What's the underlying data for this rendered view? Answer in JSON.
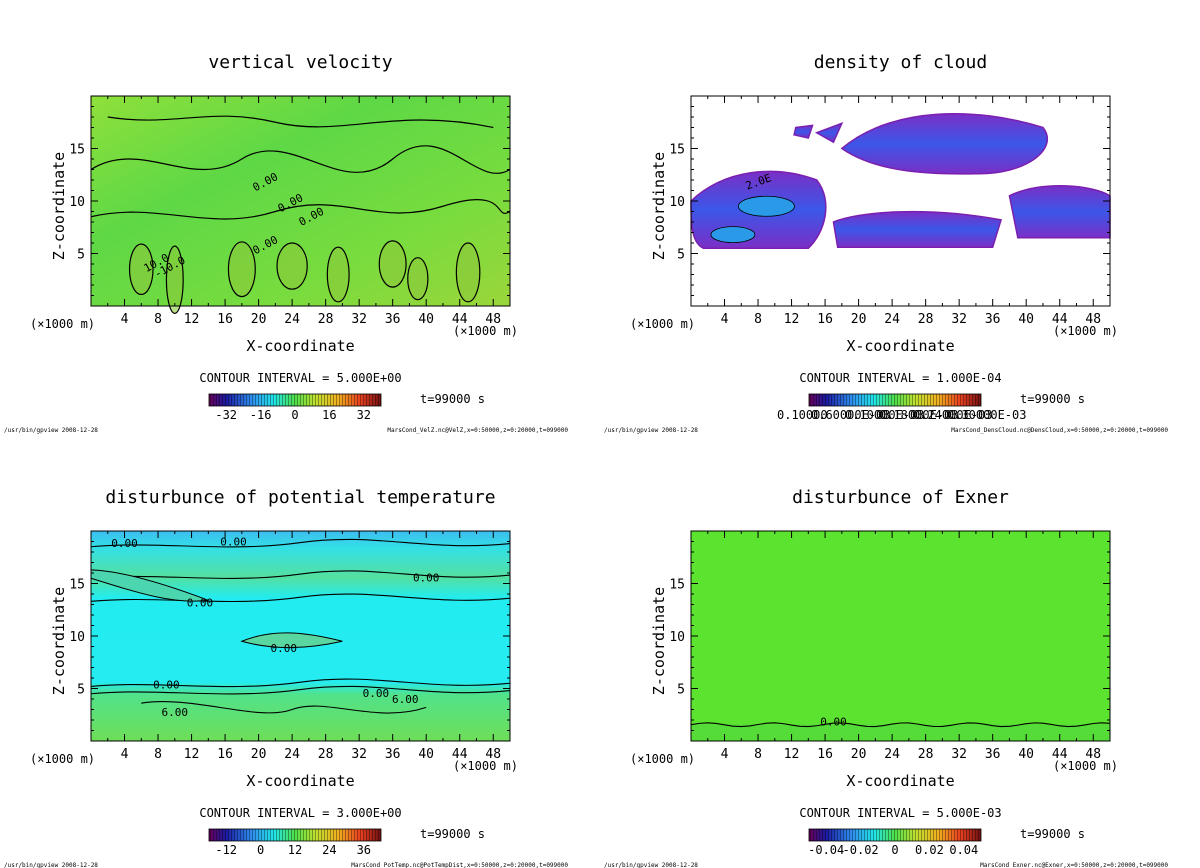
{
  "footer_left": "/usr/bin/gpview  2008-12-28",
  "charts": [
    {
      "title": "vertical velocity",
      "xlabel": "X-coordinate",
      "ylabel": "Z-coordinate",
      "x_unit": "(×1000 m)",
      "y_unit": "(×1000 m)",
      "x_ticks": [
        "4",
        "8",
        "12",
        "16",
        "20",
        "24",
        "28",
        "32",
        "36",
        "40",
        "44",
        "48"
      ],
      "y_ticks": [
        "5",
        "10",
        "15"
      ],
      "contour_interval": "CONTOUR INTERVAL = 5.000E+00",
      "time": "t=99000 s",
      "colorbar_labels": [
        "-32",
        "-16",
        "0",
        "16",
        "32"
      ],
      "colorbar_range": [
        -40,
        40
      ],
      "contour_labels": [
        "0.00",
        "0.00",
        "0.00",
        "0.00",
        "-10.0",
        "10.0"
      ],
      "footer_right": "MarsCond_VelZ.nc@VelZ,x=0:50000,z=0:20000,t=099000"
    },
    {
      "title": "density of cloud",
      "xlabel": "X-coordinate",
      "ylabel": "Z-coordinate",
      "x_unit": "(×1000 m)",
      "y_unit": "(×1000 m)",
      "x_ticks": [
        "4",
        "8",
        "12",
        "16",
        "20",
        "24",
        "28",
        "32",
        "36",
        "40",
        "44",
        "48"
      ],
      "y_ticks": [
        "5",
        "10",
        "15"
      ],
      "contour_interval": "CONTOUR INTERVAL = 1.000E-04",
      "time": "t=99000 s",
      "colorbar_labels": [
        "0.10000",
        "0.60000E-03",
        "0.10000E-03",
        "0.18000E-03",
        "0.24000E-03",
        "0.30000E-03"
      ],
      "contour_labels": [
        "2.0E"
      ],
      "footer_right": "MarsCond_DensCloud.nc@DensCloud,x=0:50000,z=0:20000,t=099000"
    },
    {
      "title": "disturbunce of potential temperature",
      "xlabel": "X-coordinate",
      "ylabel": "Z-coordinate",
      "x_unit": "(×1000 m)",
      "y_unit": "(×1000 m)",
      "x_ticks": [
        "4",
        "8",
        "12",
        "16",
        "20",
        "24",
        "28",
        "32",
        "36",
        "40",
        "44",
        "48"
      ],
      "y_ticks": [
        "5",
        "10",
        "15"
      ],
      "contour_interval": "CONTOUR INTERVAL = 3.000E+00",
      "time": "t=99000 s",
      "colorbar_labels": [
        "-12",
        "0",
        "12",
        "24",
        "36"
      ],
      "colorbar_range": [
        -18,
        42
      ],
      "contour_labels": [
        "0.00",
        "0.00",
        "0.00",
        "0.00",
        "0.00",
        "0.00",
        "0.00",
        "6.00",
        "6.00"
      ],
      "footer_right": "MarsCond_PotTemp.nc@PotTempDist,x=0:50000,z=0:20000,t=099000"
    },
    {
      "title": "disturbunce of Exner",
      "xlabel": "X-coordinate",
      "ylabel": "Z-coordinate",
      "x_unit": "(×1000 m)",
      "y_unit": "(×1000 m)",
      "x_ticks": [
        "4",
        "8",
        "12",
        "16",
        "20",
        "24",
        "28",
        "32",
        "36",
        "40",
        "44",
        "48"
      ],
      "y_ticks": [
        "5",
        "10",
        "15"
      ],
      "contour_interval": "CONTOUR INTERVAL = 5.000E-03",
      "time": "t=99000 s",
      "colorbar_labels": [
        "-0.04",
        "-0.02",
        "0",
        "0.02",
        "0.04"
      ],
      "colorbar_range": [
        -0.05,
        0.05
      ],
      "contour_labels": [
        "0.00"
      ],
      "footer_right": "MarsCond_Exner.nc@Exner,x=0:50000,z=0:20000,t=099000"
    }
  ],
  "chart_data": [
    {
      "type": "heatmap",
      "title": "vertical velocity",
      "xlabel": "X-coordinate",
      "ylabel": "Z-coordinate",
      "xlim": [
        0,
        50
      ],
      "ylim": [
        0,
        20
      ],
      "x_ticks": [
        4,
        8,
        12,
        16,
        20,
        24,
        28,
        32,
        36,
        40,
        44,
        48
      ],
      "y_ticks": [
        5,
        10,
        15
      ],
      "contour_interval": 5.0,
      "colorbar_range": [
        -40,
        40
      ]
    },
    {
      "type": "heatmap",
      "title": "density of cloud",
      "xlabel": "X-coordinate",
      "ylabel": "Z-coordinate",
      "xlim": [
        0,
        50
      ],
      "ylim": [
        0,
        20
      ],
      "x_ticks": [
        4,
        8,
        12,
        16,
        20,
        24,
        28,
        32,
        36,
        40,
        44,
        48
      ],
      "y_ticks": [
        5,
        10,
        15
      ],
      "contour_interval": 0.0001
    },
    {
      "type": "heatmap",
      "title": "disturbunce of potential temperature",
      "xlabel": "X-coordinate",
      "ylabel": "Z-coordinate",
      "xlim": [
        0,
        50
      ],
      "ylim": [
        0,
        20
      ],
      "x_ticks": [
        4,
        8,
        12,
        16,
        20,
        24,
        28,
        32,
        36,
        40,
        44,
        48
      ],
      "y_ticks": [
        5,
        10,
        15
      ],
      "contour_interval": 3.0,
      "colorbar_range": [
        -18,
        42
      ]
    },
    {
      "type": "heatmap",
      "title": "disturbunce of Exner",
      "xlabel": "X-coordinate",
      "ylabel": "Z-coordinate",
      "xlim": [
        0,
        50
      ],
      "ylim": [
        0,
        20
      ],
      "x_ticks": [
        4,
        8,
        12,
        16,
        20,
        24,
        28,
        32,
        36,
        40,
        44,
        48
      ],
      "y_ticks": [
        5,
        10,
        15
      ],
      "contour_interval": 0.005,
      "colorbar_range": [
        -0.05,
        0.05
      ]
    }
  ]
}
